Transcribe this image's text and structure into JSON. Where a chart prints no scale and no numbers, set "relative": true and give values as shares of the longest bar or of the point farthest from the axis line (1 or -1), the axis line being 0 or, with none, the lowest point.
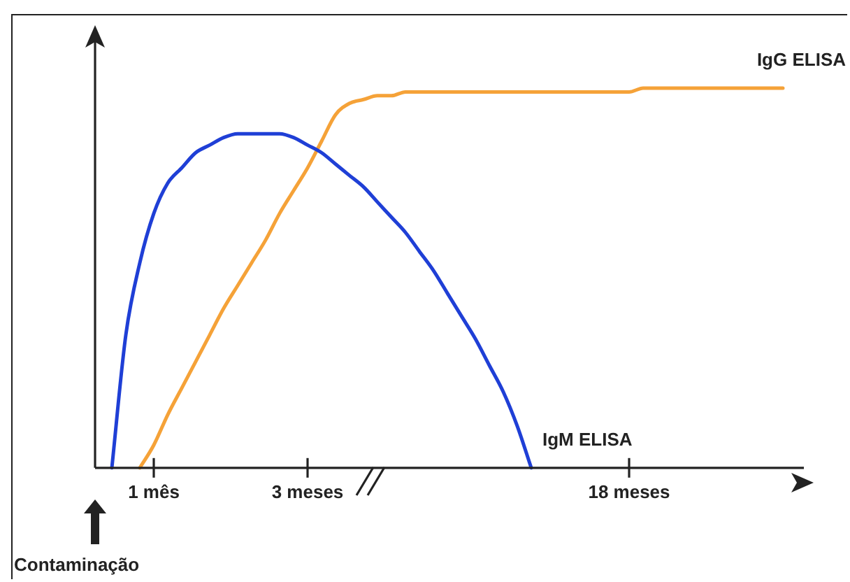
{
  "chart_data": {
    "type": "line",
    "relative": true,
    "legend": false,
    "grid": false,
    "marker": "none",
    "categories": [
      null,
      null,
      null,
      null,
      "1 mês",
      null,
      null,
      null,
      null,
      null,
      null,
      null,
      null,
      null,
      null,
      "3 meses",
      null,
      null,
      null,
      null,
      null,
      null,
      null,
      null,
      null,
      null,
      null,
      null,
      null,
      null,
      null,
      null,
      null,
      null,
      null,
      null,
      null,
      null,
      "18 meses",
      null,
      null,
      null,
      null,
      null,
      null,
      null,
      null,
      null,
      null,
      null
    ],
    "series": [
      {
        "name": "IgM ELISA",
        "color": "#1f3fd6",
        "values": [
          null,
          0,
          0.35,
          0.54,
          0.67,
          0.75,
          0.79,
          0.83,
          0.85,
          0.87,
          0.88,
          0.88,
          0.88,
          0.88,
          0.87,
          0.85,
          0.83,
          0.8,
          0.77,
          0.74,
          0.7,
          0.66,
          0.62,
          0.57,
          0.52,
          0.46,
          0.4,
          0.34,
          0.27,
          0.2,
          0.11,
          0,
          null,
          null,
          null,
          null,
          null,
          null,
          null,
          null,
          null,
          null,
          null,
          null,
          null,
          null,
          null,
          null,
          null,
          null
        ]
      },
      {
        "name": "IgG ELISA",
        "color": "#f5a238",
        "values": [
          null,
          null,
          null,
          0,
          0.06,
          0.14,
          0.21,
          0.28,
          0.35,
          0.42,
          0.48,
          0.54,
          0.6,
          0.67,
          0.73,
          0.79,
          0.86,
          0.93,
          0.96,
          0.97,
          0.98,
          0.98,
          0.99,
          0.99,
          0.99,
          0.99,
          0.99,
          0.99,
          0.99,
          0.99,
          0.99,
          0.99,
          0.99,
          0.99,
          0.99,
          0.99,
          0.99,
          0.99,
          0.99,
          1,
          1,
          1,
          1,
          1,
          1,
          1,
          1,
          1,
          1,
          1
        ]
      }
    ],
    "annotations": [
      "Contaminação"
    ]
  }
}
